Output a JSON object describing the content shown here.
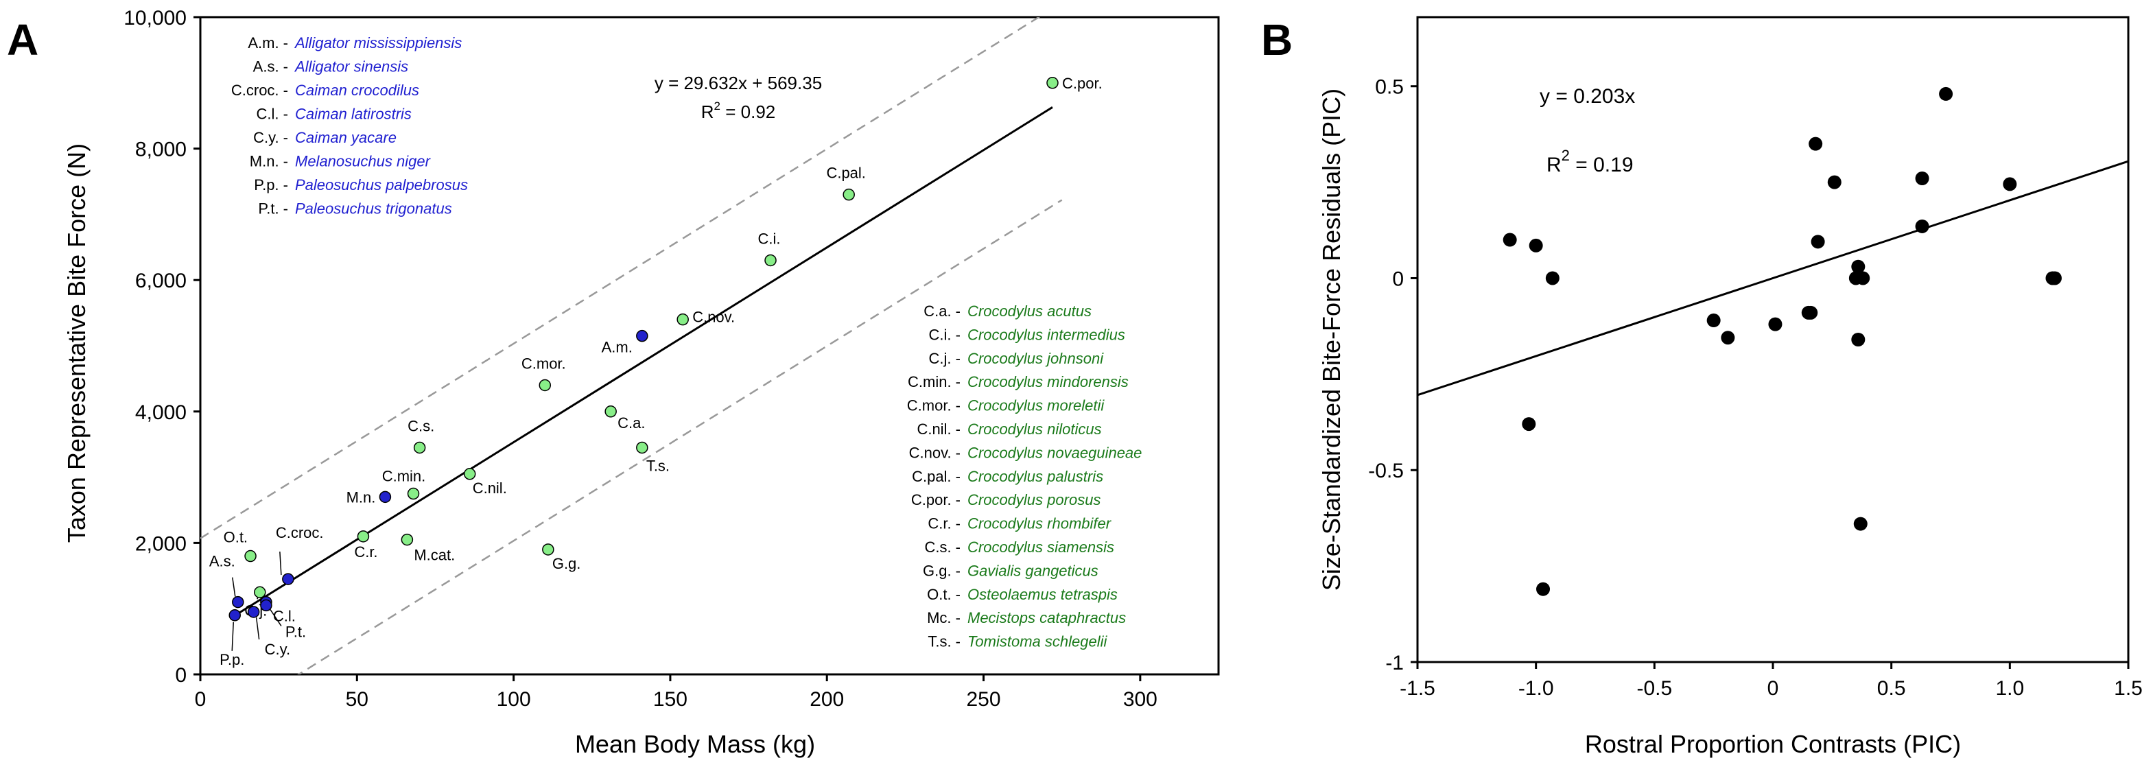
{
  "chart_data": [
    {
      "panel": "A",
      "type": "scatter",
      "xlabel": "Mean Body Mass (kg)",
      "ylabel": "Taxon Representative Bite Force  (N)",
      "xlim": [
        0,
        325
      ],
      "ylim": [
        0,
        10000
      ],
      "xticks": [
        0,
        50,
        100,
        150,
        200,
        250,
        300
      ],
      "yticks": [
        0,
        2000,
        4000,
        6000,
        8000,
        10000
      ],
      "xtick_labels": [
        "0",
        "50",
        "100",
        "150",
        "200",
        "250",
        "300"
      ],
      "ytick_labels": [
        "0",
        "2,000",
        "4,000",
        "6,000",
        "8,000",
        "10,000"
      ],
      "equation": "y = 29.632x + 569.35",
      "r2_prefix": "R",
      "r2_sup": "2",
      "r2_value": " = 0.92",
      "fit": {
        "slope": 29.632,
        "intercept": 569.35,
        "x_range": [
          12,
          272
        ]
      },
      "confidence_band": {
        "upper_offset": 1500,
        "lower_offset": -1500,
        "x_range": [
          0,
          275
        ],
        "style": "dashed"
      },
      "grid": false,
      "colors": {
        "caimanine": "#2222cc",
        "crocodylid": "#88ee88",
        "edge": "#000000",
        "fit": "#000000",
        "band": "#999999",
        "legend_blue": "#1f1fd0",
        "legend_green": "#1a7a1a"
      },
      "points": [
        {
          "label": "C.por.",
          "x": 272,
          "y": 9000,
          "group": "crocodylid"
        },
        {
          "label": "C.pal.",
          "x": 207,
          "y": 7300,
          "group": "crocodylid"
        },
        {
          "label": "C.i.",
          "x": 182,
          "y": 6300,
          "group": "crocodylid"
        },
        {
          "label": "C.nov.",
          "x": 154,
          "y": 5400,
          "group": "crocodylid"
        },
        {
          "label": "A.m.",
          "x": 141,
          "y": 5150,
          "group": "caimanine"
        },
        {
          "label": "C.mor.",
          "x": 110,
          "y": 4400,
          "group": "crocodylid"
        },
        {
          "label": "C.a.",
          "x": 131,
          "y": 4000,
          "group": "crocodylid"
        },
        {
          "label": "T.s.",
          "x": 141,
          "y": 3450,
          "group": "crocodylid"
        },
        {
          "label": "C.s.",
          "x": 70,
          "y": 3450,
          "group": "crocodylid"
        },
        {
          "label": "C.nil.",
          "x": 86,
          "y": 3050,
          "group": "crocodylid"
        },
        {
          "label": "C.min.",
          "x": 68,
          "y": 2750,
          "group": "crocodylid"
        },
        {
          "label": "M.n.",
          "x": 59,
          "y": 2700,
          "group": "caimanine"
        },
        {
          "label": "C.r.",
          "x": 52,
          "y": 2100,
          "group": "crocodylid"
        },
        {
          "label": "M.cat.",
          "x": 66,
          "y": 2050,
          "group": "crocodylid"
        },
        {
          "label": "G.g.",
          "x": 111,
          "y": 1900,
          "group": "crocodylid"
        },
        {
          "label": "O.t.",
          "x": 16,
          "y": 1800,
          "group": "crocodylid"
        },
        {
          "label": "C.croc.",
          "x": 28,
          "y": 1450,
          "group": "caimanine"
        },
        {
          "label": "C.j.",
          "x": 19,
          "y": 1250,
          "group": "crocodylid"
        },
        {
          "label": "A.s.",
          "x": 12,
          "y": 1100,
          "group": "caimanine"
        },
        {
          "label": "C.l.",
          "x": 21,
          "y": 1100,
          "group": "caimanine"
        },
        {
          "label": "C.y.",
          "x": 17,
          "y": 950,
          "group": "caimanine"
        },
        {
          "label": "P.t.",
          "x": 21,
          "y": 1050,
          "group": "caimanine"
        },
        {
          "label": "P.p.",
          "x": 11,
          "y": 900,
          "group": "caimanine"
        }
      ],
      "legend_blue": [
        {
          "abbr": "A.m.",
          "name": "Alligator mississippiensis"
        },
        {
          "abbr": "A.s.",
          "name": "Alligator sinensis"
        },
        {
          "abbr": "C.croc.",
          "name": "Caiman crocodilus"
        },
        {
          "abbr": "C.l.",
          "name": "Caiman latirostris"
        },
        {
          "abbr": "C.y.",
          "name": "Caiman yacare"
        },
        {
          "abbr": "M.n.",
          "name": "Melanosuchus niger"
        },
        {
          "abbr": "P.p.",
          "name": "Paleosuchus palpebrosus"
        },
        {
          "abbr": "P.t.",
          "name": "Paleosuchus trigonatus"
        }
      ],
      "legend_green": [
        {
          "abbr": "C.a.",
          "name": "Crocodylus  acutus"
        },
        {
          "abbr": "C.i.",
          "name": "Crocodylus  intermedius"
        },
        {
          "abbr": "C.j.",
          "name": "Crocodylus  johnsoni"
        },
        {
          "abbr": "C.min.",
          "name": "Crocodylus  mindorensis"
        },
        {
          "abbr": "C.mor.",
          "name": "Crocodylus  moreletii"
        },
        {
          "abbr": "C.nil.",
          "name": "Crocodylus  niloticus"
        },
        {
          "abbr": "C.nov.",
          "name": "Crocodylus  novaeguineae"
        },
        {
          "abbr": "C.pal.",
          "name": "Crocodylus  palustris"
        },
        {
          "abbr": "C.por.",
          "name": "Crocodylus  porosus"
        },
        {
          "abbr": "C.r.",
          "name": "Crocodylus  rhombifer"
        },
        {
          "abbr": "C.s.",
          "name": "Crocodylus  siamensis"
        },
        {
          "abbr": "G.g.",
          "name": "Gavialis  gangeticus"
        },
        {
          "abbr": "O.t.",
          "name": "Osteolaemus  tetraspis"
        },
        {
          "abbr": "Mc.",
          "name": "Mecistops  cataphractus"
        },
        {
          "abbr": "T.s.",
          "name": "Tomistoma  schlegelii"
        }
      ]
    },
    {
      "panel": "B",
      "type": "scatter",
      "xlabel": "Rostral Proportion Contrasts (PIC)",
      "ylabel": "Size-Standardized Bite-Force Residuals  (PIC)",
      "xlim": [
        -1.5,
        1.5
      ],
      "ylim": [
        -1,
        0.68
      ],
      "xticks": [
        -1.5,
        -1.0,
        -0.5,
        0,
        0.5,
        1.0,
        1.5
      ],
      "yticks": [
        -1,
        -0.5,
        0,
        0.5
      ],
      "xtick_labels": [
        "-1.5",
        "-1.0",
        "-0.5",
        "0",
        "0.5",
        "1.0",
        "1.5"
      ],
      "ytick_labels": [
        "-1",
        "-0.5",
        "0",
        "0.5"
      ],
      "equation": "y = 0.203x",
      "r2_prefix": "R",
      "r2_sup": "2",
      "r2_value": " = 0.19",
      "fit": {
        "slope": 0.203,
        "intercept": 0,
        "x_range": [
          -1.5,
          1.5
        ]
      },
      "grid": false,
      "colors": {
        "point": "#000000",
        "fit": "#000000"
      },
      "points": [
        {
          "x": -1.11,
          "y": 0.1
        },
        {
          "x": -1.0,
          "y": 0.085
        },
        {
          "x": -0.93,
          "y": 0.0
        },
        {
          "x": -1.03,
          "y": -0.38
        },
        {
          "x": -0.97,
          "y": -0.81
        },
        {
          "x": -0.25,
          "y": -0.11
        },
        {
          "x": -0.19,
          "y": -0.155
        },
        {
          "x": 0.01,
          "y": -0.12
        },
        {
          "x": 0.15,
          "y": -0.09
        },
        {
          "x": 0.16,
          "y": -0.09
        },
        {
          "x": 0.18,
          "y": 0.35
        },
        {
          "x": 0.19,
          "y": 0.095
        },
        {
          "x": 0.26,
          "y": 0.25
        },
        {
          "x": 0.35,
          "y": 0.0
        },
        {
          "x": 0.36,
          "y": 0.03
        },
        {
          "x": 0.38,
          "y": 0.0
        },
        {
          "x": 0.36,
          "y": -0.16
        },
        {
          "x": 0.37,
          "y": -0.64
        },
        {
          "x": 0.63,
          "y": 0.26
        },
        {
          "x": 0.63,
          "y": 0.135
        },
        {
          "x": 0.73,
          "y": 0.48
        },
        {
          "x": 1.0,
          "y": 0.245
        },
        {
          "x": 1.18,
          "y": 0.0
        },
        {
          "x": 1.19,
          "y": 0.0
        }
      ]
    }
  ]
}
